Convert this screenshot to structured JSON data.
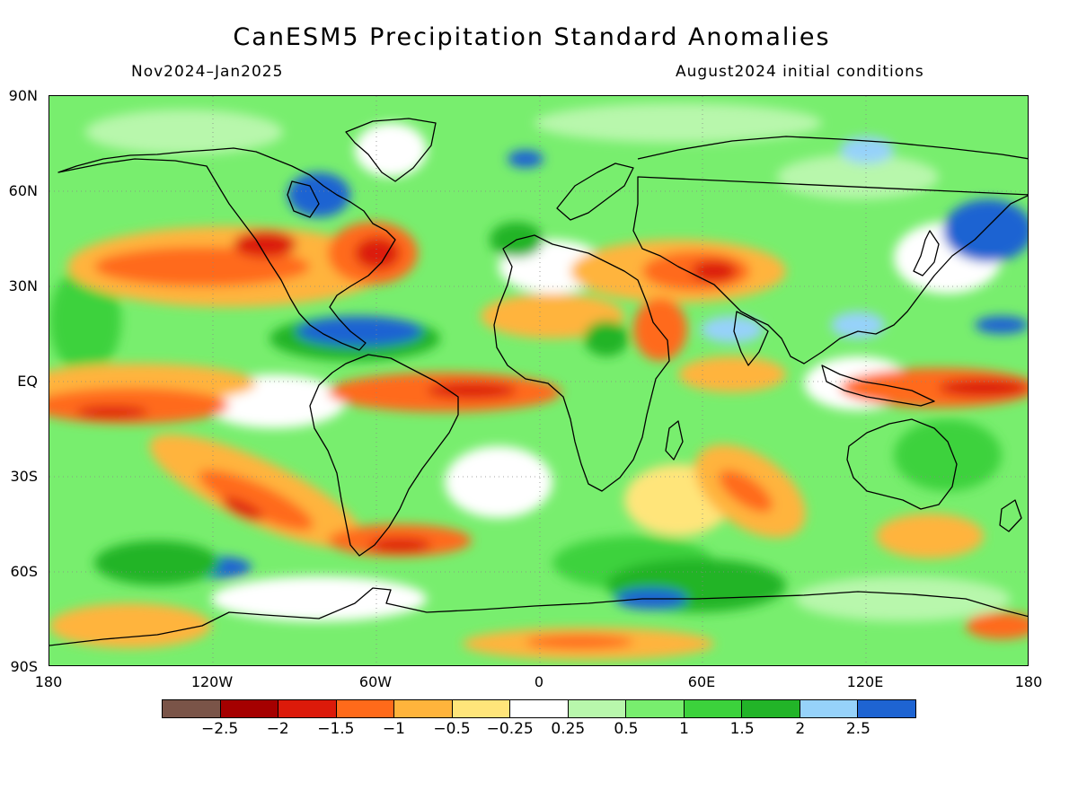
{
  "header": {
    "title": "CanESM5 Precipitation Standard Anomalies",
    "period": "Nov2024–Jan2025",
    "initial_conditions": "August2024 initial conditions"
  },
  "axes": {
    "lat_labels": [
      "90N",
      "60N",
      "30N",
      "EQ",
      "30S",
      "60S",
      "90S"
    ],
    "lon_labels": [
      "180",
      "120W",
      "60W",
      "0",
      "60E",
      "120E",
      "180"
    ]
  },
  "colorbar": {
    "colors": [
      "#7a5448",
      "#a50000",
      "#dc1a0a",
      "#ff6a1a",
      "#ffb43c",
      "#ffe57a",
      "#ffffff",
      "#b8f7ac",
      "#78ee6e",
      "#3cd23c",
      "#22b428",
      "#96d2fa",
      "#1e64d2"
    ],
    "labels": [
      "−2.5",
      "−2",
      "−1.5",
      "−1",
      "−0.5",
      "−0.25",
      "0.25",
      "0.5",
      "1",
      "1.5",
      "2",
      "2.5"
    ]
  }
}
